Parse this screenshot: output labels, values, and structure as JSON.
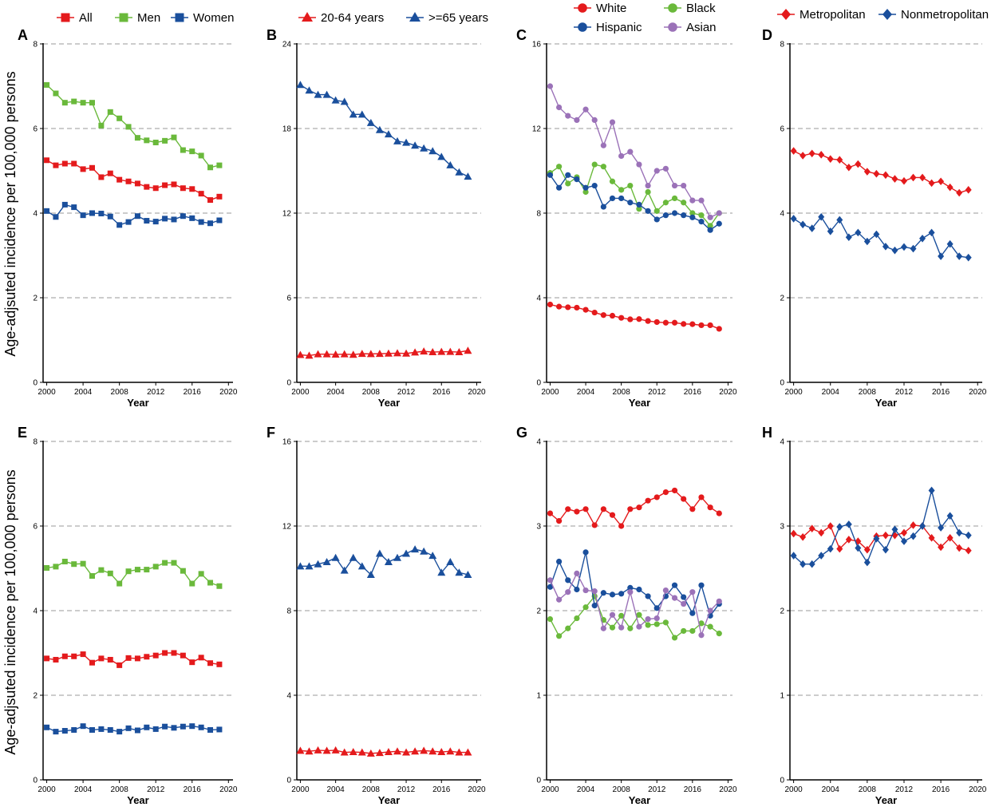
{
  "figure": {
    "ylabel": "Age-adjsuted incidence per 100,000 persons",
    "colors": {
      "red": "#e41a1c",
      "green": "#6ab93b",
      "blue": "#1a4f9c",
      "purple": "#9b72b8",
      "grid": "#999999"
    }
  },
  "chart_data": [
    {
      "panel": "A",
      "type": "line",
      "xlabel": "Year",
      "ylim": [
        0,
        8
      ],
      "yticks": [
        0,
        2,
        4,
        6,
        8
      ],
      "x": [
        2000,
        2001,
        2002,
        2003,
        2004,
        2005,
        2006,
        2007,
        2008,
        2009,
        2010,
        2011,
        2012,
        2013,
        2014,
        2015,
        2016,
        2017,
        2018,
        2019
      ],
      "series": [
        {
          "name": "All",
          "color": "red",
          "marker": "square",
          "values": [
            5.25,
            5.13,
            5.17,
            5.17,
            5.04,
            5.07,
            4.85,
            4.94,
            4.79,
            4.75,
            4.7,
            4.62,
            4.59,
            4.66,
            4.68,
            4.59,
            4.57,
            4.46,
            4.31,
            4.39
          ]
        },
        {
          "name": "Men",
          "color": "green",
          "marker": "square",
          "values": [
            7.03,
            6.83,
            6.61,
            6.64,
            6.61,
            6.61,
            6.07,
            6.39,
            6.24,
            6.04,
            5.78,
            5.72,
            5.67,
            5.71,
            5.79,
            5.49,
            5.46,
            5.36,
            5.08,
            5.13
          ]
        },
        {
          "name": "Women",
          "color": "blue",
          "marker": "square",
          "values": [
            4.05,
            3.91,
            4.2,
            4.14,
            3.95,
            4.0,
            3.99,
            3.92,
            3.72,
            3.79,
            3.93,
            3.82,
            3.8,
            3.87,
            3.85,
            3.93,
            3.88,
            3.79,
            3.76,
            3.83
          ]
        }
      ]
    },
    {
      "panel": "B",
      "type": "line",
      "xlabel": "Year",
      "ylim": [
        0,
        24
      ],
      "yticks": [
        0,
        6,
        12,
        18,
        24
      ],
      "x": [
        2000,
        2001,
        2002,
        2003,
        2004,
        2005,
        2006,
        2007,
        2008,
        2009,
        2010,
        2011,
        2012,
        2013,
        2014,
        2015,
        2016,
        2017,
        2018,
        2019
      ],
      "series": [
        {
          "name": "20-64 years",
          "color": "red",
          "marker": "triangle",
          "values": [
            1.95,
            1.9,
            2.0,
            2.0,
            1.98,
            2.0,
            1.97,
            2.03,
            2.02,
            2.03,
            2.05,
            2.07,
            2.05,
            2.13,
            2.2,
            2.15,
            2.17,
            2.17,
            2.15,
            2.25
          ]
        },
        {
          "name": ">=65 years",
          "color": "blue",
          "marker": "triangle",
          "values": [
            21.1,
            20.7,
            20.4,
            20.4,
            20.0,
            19.9,
            19.0,
            19.0,
            18.4,
            17.9,
            17.6,
            17.1,
            17.0,
            16.8,
            16.6,
            16.4,
            16.0,
            15.4,
            14.9,
            14.6
          ]
        }
      ]
    },
    {
      "panel": "C",
      "type": "line",
      "xlabel": "Year",
      "ylim": [
        0,
        16
      ],
      "yticks": [
        0,
        4,
        8,
        12,
        16
      ],
      "x": [
        2000,
        2001,
        2002,
        2003,
        2004,
        2005,
        2006,
        2007,
        2008,
        2009,
        2010,
        2011,
        2012,
        2013,
        2014,
        2015,
        2016,
        2017,
        2018,
        2019
      ],
      "series": [
        {
          "name": "White",
          "color": "red",
          "marker": "circle",
          "values": [
            3.68,
            3.58,
            3.55,
            3.53,
            3.43,
            3.3,
            3.18,
            3.15,
            3.05,
            2.98,
            2.99,
            2.9,
            2.85,
            2.82,
            2.82,
            2.76,
            2.75,
            2.7,
            2.7,
            2.53
          ]
        },
        {
          "name": "Black",
          "color": "green",
          "marker": "circle",
          "values": [
            9.9,
            10.2,
            9.4,
            9.7,
            9.0,
            10.3,
            10.2,
            9.5,
            9.1,
            9.3,
            8.2,
            9.0,
            8.1,
            8.5,
            8.7,
            8.5,
            8.0,
            7.9,
            7.4,
            8.0
          ]
        },
        {
          "name": "Hispanic",
          "color": "blue",
          "marker": "circle",
          "values": [
            9.8,
            9.2,
            9.8,
            9.6,
            9.2,
            9.3,
            8.3,
            8.7,
            8.7,
            8.5,
            8.4,
            8.1,
            7.7,
            7.9,
            8.0,
            7.9,
            7.8,
            7.6,
            7.2,
            7.5
          ]
        },
        {
          "name": "Asian",
          "color": "purple",
          "marker": "circle",
          "values": [
            14.0,
            13.0,
            12.6,
            12.4,
            12.9,
            12.4,
            11.2,
            12.3,
            10.7,
            10.9,
            10.3,
            9.3,
            10.0,
            10.1,
            9.3,
            9.3,
            8.6,
            8.6,
            7.8,
            8.0
          ]
        }
      ]
    },
    {
      "panel": "D",
      "type": "line",
      "xlabel": "Year",
      "ylim": [
        0,
        8
      ],
      "yticks": [
        0,
        2,
        4,
        6,
        8
      ],
      "x": [
        2000,
        2001,
        2002,
        2003,
        2004,
        2005,
        2006,
        2007,
        2008,
        2009,
        2010,
        2011,
        2012,
        2013,
        2014,
        2015,
        2016,
        2017,
        2018,
        2019
      ],
      "series": [
        {
          "name": "Metropolitan",
          "color": "red",
          "marker": "diamond",
          "values": [
            5.47,
            5.36,
            5.41,
            5.38,
            5.28,
            5.26,
            5.08,
            5.16,
            4.98,
            4.93,
            4.9,
            4.81,
            4.76,
            4.84,
            4.84,
            4.71,
            4.75,
            4.61,
            4.48,
            4.55
          ]
        },
        {
          "name": "Nonmetropolitan",
          "color": "blue",
          "marker": "diamond",
          "values": [
            3.87,
            3.73,
            3.64,
            3.91,
            3.57,
            3.84,
            3.43,
            3.54,
            3.33,
            3.5,
            3.21,
            3.12,
            3.2,
            3.16,
            3.4,
            3.54,
            2.98,
            3.27,
            2.98,
            2.95
          ]
        }
      ]
    },
    {
      "panel": "E",
      "type": "line",
      "xlabel": "Year",
      "ylim": [
        0,
        8
      ],
      "yticks": [
        0,
        2,
        4,
        6,
        8
      ],
      "x": [
        2000,
        2001,
        2002,
        2003,
        2004,
        2005,
        2006,
        2007,
        2008,
        2009,
        2010,
        2011,
        2012,
        2013,
        2014,
        2015,
        2016,
        2017,
        2018,
        2019
      ],
      "series": [
        {
          "name": "All",
          "color": "red",
          "marker": "square",
          "values": [
            2.87,
            2.84,
            2.92,
            2.92,
            2.97,
            2.77,
            2.87,
            2.84,
            2.71,
            2.88,
            2.87,
            2.91,
            2.94,
            3.0,
            3.0,
            2.94,
            2.78,
            2.89,
            2.76,
            2.73
          ]
        },
        {
          "name": "Men",
          "color": "green",
          "marker": "square",
          "values": [
            5.01,
            5.04,
            5.16,
            5.1,
            5.11,
            4.82,
            4.96,
            4.88,
            4.64,
            4.93,
            4.97,
            4.97,
            5.04,
            5.13,
            5.13,
            4.94,
            4.64,
            4.87,
            4.66,
            4.58
          ]
        },
        {
          "name": "Women",
          "color": "blue",
          "marker": "square",
          "values": [
            1.24,
            1.14,
            1.16,
            1.18,
            1.27,
            1.18,
            1.2,
            1.18,
            1.14,
            1.22,
            1.17,
            1.24,
            1.2,
            1.26,
            1.23,
            1.26,
            1.27,
            1.24,
            1.18,
            1.19
          ]
        }
      ]
    },
    {
      "panel": "F",
      "type": "line",
      "xlabel": "Year",
      "ylim": [
        0,
        16
      ],
      "yticks": [
        0,
        4,
        8,
        12,
        16
      ],
      "x": [
        2000,
        2001,
        2002,
        2003,
        2004,
        2005,
        2006,
        2007,
        2008,
        2009,
        2010,
        2011,
        2012,
        2013,
        2014,
        2015,
        2016,
        2017,
        2018,
        2019
      ],
      "series": [
        {
          "name": "20-64 years",
          "color": "red",
          "marker": "triangle",
          "values": [
            1.38,
            1.35,
            1.4,
            1.38,
            1.4,
            1.3,
            1.32,
            1.3,
            1.25,
            1.28,
            1.32,
            1.35,
            1.3,
            1.35,
            1.38,
            1.35,
            1.32,
            1.35,
            1.3,
            1.3
          ]
        },
        {
          "name": ">=65 years",
          "color": "blue",
          "marker": "triangle",
          "values": [
            10.1,
            10.1,
            10.2,
            10.3,
            10.5,
            9.9,
            10.5,
            10.1,
            9.7,
            10.7,
            10.3,
            10.5,
            10.7,
            10.9,
            10.8,
            10.6,
            9.8,
            10.3,
            9.8,
            9.7
          ]
        }
      ]
    },
    {
      "panel": "G",
      "type": "line",
      "xlabel": "Year",
      "ylim": [
        0,
        4
      ],
      "yticks": [
        0,
        1,
        2,
        3,
        4
      ],
      "x": [
        2000,
        2001,
        2002,
        2003,
        2004,
        2005,
        2006,
        2007,
        2008,
        2009,
        2010,
        2011,
        2012,
        2013,
        2014,
        2015,
        2016,
        2017,
        2018,
        2019
      ],
      "series": [
        {
          "name": "White",
          "color": "red",
          "marker": "circle",
          "values": [
            3.15,
            3.06,
            3.2,
            3.17,
            3.2,
            3.01,
            3.2,
            3.13,
            3.0,
            3.2,
            3.22,
            3.3,
            3.34,
            3.4,
            3.42,
            3.32,
            3.2,
            3.34,
            3.22,
            3.15
          ]
        },
        {
          "name": "Black",
          "color": "green",
          "marker": "circle",
          "values": [
            1.9,
            1.7,
            1.79,
            1.91,
            2.04,
            2.17,
            1.89,
            1.8,
            1.94,
            1.79,
            1.95,
            1.83,
            1.84,
            1.86,
            1.68,
            1.76,
            1.76,
            1.85,
            1.81,
            1.73
          ]
        },
        {
          "name": "Hispanic",
          "color": "blue",
          "marker": "circle",
          "values": [
            2.28,
            2.58,
            2.36,
            2.25,
            2.69,
            2.06,
            2.21,
            2.19,
            2.2,
            2.27,
            2.25,
            2.17,
            2.03,
            2.17,
            2.3,
            2.16,
            1.97,
            2.3,
            1.94,
            2.08
          ]
        },
        {
          "name": "Asian",
          "color": "purple",
          "marker": "circle",
          "values": [
            2.36,
            2.13,
            2.22,
            2.44,
            2.24,
            2.23,
            1.79,
            1.95,
            1.8,
            2.22,
            1.81,
            1.9,
            1.91,
            2.24,
            2.15,
            2.08,
            2.22,
            1.71,
            2.0,
            2.11
          ]
        }
      ]
    },
    {
      "panel": "H",
      "type": "line",
      "xlabel": "Year",
      "ylim": [
        0,
        4
      ],
      "yticks": [
        0,
        1,
        2,
        3,
        4
      ],
      "x": [
        2000,
        2001,
        2002,
        2003,
        2004,
        2005,
        2006,
        2007,
        2008,
        2009,
        2010,
        2011,
        2012,
        2013,
        2014,
        2015,
        2016,
        2017,
        2018,
        2019
      ],
      "series": [
        {
          "name": "Metropolitan",
          "color": "red",
          "marker": "diamond",
          "values": [
            2.91,
            2.87,
            2.97,
            2.92,
            3.0,
            2.73,
            2.84,
            2.82,
            2.72,
            2.88,
            2.89,
            2.89,
            2.92,
            3.01,
            3.0,
            2.86,
            2.75,
            2.86,
            2.74,
            2.71
          ]
        },
        {
          "name": "Nonmetropolitan",
          "color": "blue",
          "marker": "diamond",
          "values": [
            2.65,
            2.55,
            2.55,
            2.65,
            2.73,
            2.99,
            3.02,
            2.74,
            2.57,
            2.85,
            2.72,
            2.96,
            2.82,
            2.88,
            3.0,
            3.42,
            2.98,
            3.12,
            2.92,
            2.89
          ]
        }
      ]
    }
  ]
}
